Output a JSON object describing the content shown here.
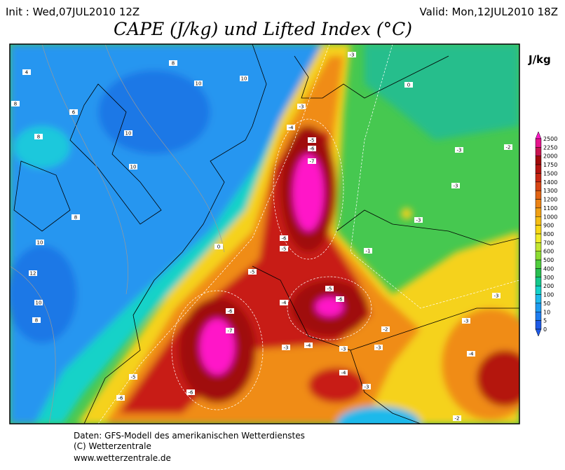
{
  "header": {
    "init": "Init : Wed,07JUL2010 12Z",
    "valid": "Valid: Mon,12JUL2010 18Z",
    "title": "CAPE (J/kg) und Lifted Index (°C)"
  },
  "legend": {
    "unit": "J/kg",
    "levels": [
      {
        "label": "2500",
        "color": "#ff19c8"
      },
      {
        "label": "2250",
        "color": "#e6148c"
      },
      {
        "label": "2000",
        "color": "#c81450"
      },
      {
        "label": "1750",
        "color": "#a00a0a"
      },
      {
        "label": "1500",
        "color": "#b41410"
      },
      {
        "label": "1400",
        "color": "#c82814"
      },
      {
        "label": "1300",
        "color": "#d74614"
      },
      {
        "label": "1200",
        "color": "#e16414"
      },
      {
        "label": "1100",
        "color": "#eb8214"
      },
      {
        "label": "1000",
        "color": "#f0a014"
      },
      {
        "label": "900",
        "color": "#f5be14"
      },
      {
        "label": "800",
        "color": "#f8d714"
      },
      {
        "label": "700",
        "color": "#f0eb28"
      },
      {
        "label": "600",
        "color": "#c3e632"
      },
      {
        "label": "500",
        "color": "#8cdc32"
      },
      {
        "label": "400",
        "color": "#50cd3c"
      },
      {
        "label": "300",
        "color": "#28be50"
      },
      {
        "label": "200",
        "color": "#14c88c"
      },
      {
        "label": "100",
        "color": "#14d2c8"
      },
      {
        "label": "50",
        "color": "#1eb9eb"
      },
      {
        "label": "10",
        "color": "#1e9bf0"
      },
      {
        "label": "5",
        "color": "#1e7df0"
      },
      {
        "label": "0",
        "color": "#1e5ae6"
      }
    ]
  },
  "map": {
    "labels": [
      "-3",
      "-3",
      "-4",
      "-5",
      "-6",
      "-7",
      "-6",
      "-5",
      "-5",
      "-4",
      "-5",
      "-6",
      "-6",
      "-7",
      "-5",
      "-6",
      "-6",
      "-3",
      "-4",
      "-3",
      "-3",
      "-2",
      "-4",
      "-3",
      "-1",
      "-3",
      "-3",
      "-3",
      "-2",
      "-3",
      "-3",
      "-4",
      "-2",
      "8",
      "10",
      "10",
      "6",
      "8",
      "10",
      "10",
      "8",
      "10",
      "12",
      "10",
      "8",
      "4",
      "8",
      "0",
      "0"
    ]
  },
  "footer": [
    "Daten: GFS-Modell des amerikanischen Wetterdienstes",
    "(C) Wetterzentrale",
    "www.wetterzentrale.de"
  ]
}
